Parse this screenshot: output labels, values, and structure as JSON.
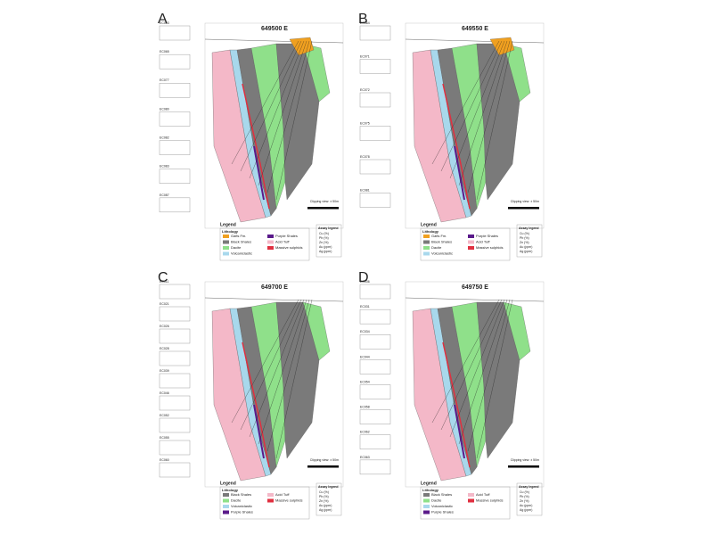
{
  "panels": [
    {
      "label": "A",
      "title": "649500 E",
      "holes": [
        "EC063",
        "EC065",
        "EC077",
        "EC080",
        "EC082",
        "EC083",
        "EC087"
      ],
      "legend": {
        "title": "Legend",
        "lithology_title": "Lithology",
        "items": [
          {
            "name": "Gafis Fm.",
            "color": "#f0a020"
          },
          {
            "name": "Black Shales",
            "color": "#7a7a7a"
          },
          {
            "name": "Dacite",
            "color": "#8fe08a"
          },
          {
            "name": "Volcaniclastic",
            "color": "#a8d8ec"
          },
          {
            "name": "Purple Shales",
            "color": "#5a1a8a"
          },
          {
            "name": "Acid Tuff",
            "color": "#f4b8c8"
          },
          {
            "name": "Massive sulphids",
            "color": "#e03040"
          }
        ]
      },
      "clipping": "Clipping view: ± 50m",
      "assay_title": "Assay legend",
      "assay_items": [
        "Cu (%)",
        "Pb (%)",
        "Zn (%)",
        "Au (ppm)",
        "Ag (ppm)"
      ]
    },
    {
      "label": "B",
      "title": "649550 E",
      "holes": [
        "EC064",
        "EC071",
        "EC072",
        "EC075",
        "EC078",
        "EC081"
      ],
      "legend": {
        "title": "Legend",
        "lithology_title": "Lithology",
        "items": [
          {
            "name": "Gafis Fm.",
            "color": "#f0a020"
          },
          {
            "name": "Black Shales",
            "color": "#7a7a7a"
          },
          {
            "name": "Dacite",
            "color": "#8fe08a"
          },
          {
            "name": "Volcaniclastic",
            "color": "#a8d8ec"
          },
          {
            "name": "Purple Shales",
            "color": "#5a1a8a"
          },
          {
            "name": "Acid Tuff",
            "color": "#f4b8c8"
          },
          {
            "name": "Massive sulphids",
            "color": "#e03040"
          }
        ]
      },
      "clipping": "Clipping view: ± 50m",
      "assay_title": "Assay legend",
      "assay_items": [
        "Cu (%)",
        "Pb (%)",
        "Zn (%)",
        "Au (ppm)",
        "Ag (ppm)"
      ]
    },
    {
      "label": "C",
      "title": "649700 E",
      "holes": [
        "EC011",
        "EC021",
        "EC026",
        "EC028",
        "EC039",
        "EC046",
        "EC052",
        "EC055",
        "EC060"
      ],
      "legend": {
        "title": "Legend",
        "lithology_title": "Lithology",
        "items": [
          {
            "name": "Black Shales",
            "color": "#7a7a7a"
          },
          {
            "name": "Dacite",
            "color": "#8fe08a"
          },
          {
            "name": "Volcaniclastic",
            "color": "#a8d8ec"
          },
          {
            "name": "Purple Shales",
            "color": "#5a1a8a"
          },
          {
            "name": "Acid Tuff",
            "color": "#f4b8c8"
          },
          {
            "name": "Massive sulphids",
            "color": "#e03040"
          }
        ]
      },
      "clipping": "Clipping view: ± 50m",
      "assay_title": "Assay legend",
      "assay_items": [
        "Cu (%)",
        "Pb (%)",
        "Zn (%)",
        "Au (ppm)",
        "Ag (ppm)"
      ]
    },
    {
      "label": "D",
      "title": "649750 E",
      "holes": [
        "EC036",
        "EC031",
        "EC034",
        "EC044",
        "EC054",
        "EC058",
        "EC062",
        "EC063"
      ],
      "legend": {
        "title": "Legend",
        "lithology_title": "Lithology",
        "items": [
          {
            "name": "Black Shales",
            "color": "#7a7a7a"
          },
          {
            "name": "Dacite",
            "color": "#8fe08a"
          },
          {
            "name": "Volcaniclastic",
            "color": "#a8d8ec"
          },
          {
            "name": "Purple Shales",
            "color": "#5a1a8a"
          },
          {
            "name": "Acid Tuff",
            "color": "#f4b8c8"
          },
          {
            "name": "Massive sulphids",
            "color": "#e03040"
          }
        ]
      },
      "clipping": "Clipping view: ± 50m",
      "assay_title": "Assay legend",
      "assay_items": [
        "Cu (%)",
        "Pb (%)",
        "Zn (%)",
        "Au (ppm)",
        "Ag (ppm)"
      ]
    }
  ]
}
